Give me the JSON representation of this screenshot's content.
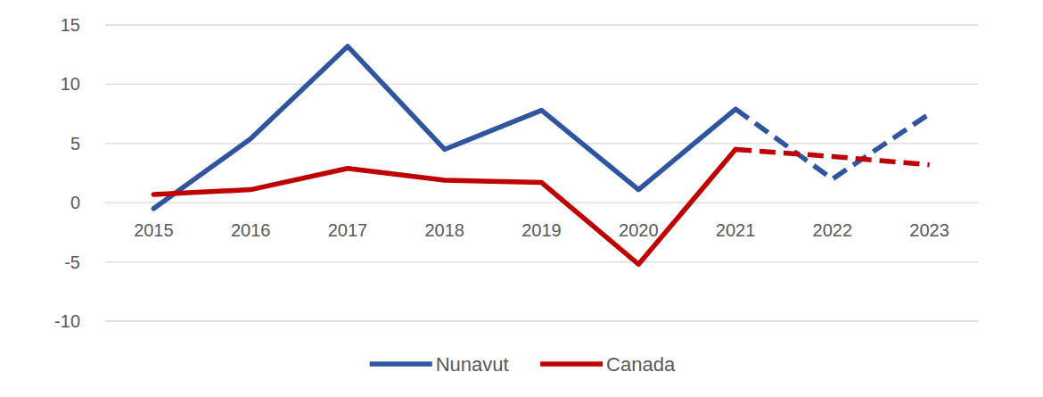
{
  "chart_data": {
    "type": "line",
    "categories": [
      "2015",
      "2016",
      "2017",
      "2018",
      "2019",
      "2020",
      "2021",
      "2022",
      "2023"
    ],
    "series": [
      {
        "name": "Nunavut",
        "color": "#2f55a0",
        "line_style": "solid",
        "values": [
          -0.5,
          5.4,
          13.2,
          4.5,
          7.8,
          1.1,
          7.9,
          null,
          null
        ]
      },
      {
        "name": "Canada",
        "color": "#c00000",
        "line_style": "solid",
        "values": [
          0.7,
          1.1,
          2.9,
          1.9,
          1.7,
          -5.2,
          4.5,
          null,
          null
        ]
      },
      {
        "color": "#2f55a0",
        "line_style": "dashed",
        "values": [
          null,
          null,
          null,
          null,
          null,
          null,
          7.9,
          2.0,
          7.5
        ]
      },
      {
        "color": "#c00000",
        "line_style": "dashed",
        "values": [
          null,
          null,
          null,
          null,
          null,
          null,
          4.5,
          3.9,
          3.2
        ]
      }
    ],
    "ylim": [
      -10,
      15
    ],
    "yticks": [
      -10,
      -5,
      0,
      5,
      10,
      15
    ],
    "grid": true,
    "legend": "bottom"
  }
}
